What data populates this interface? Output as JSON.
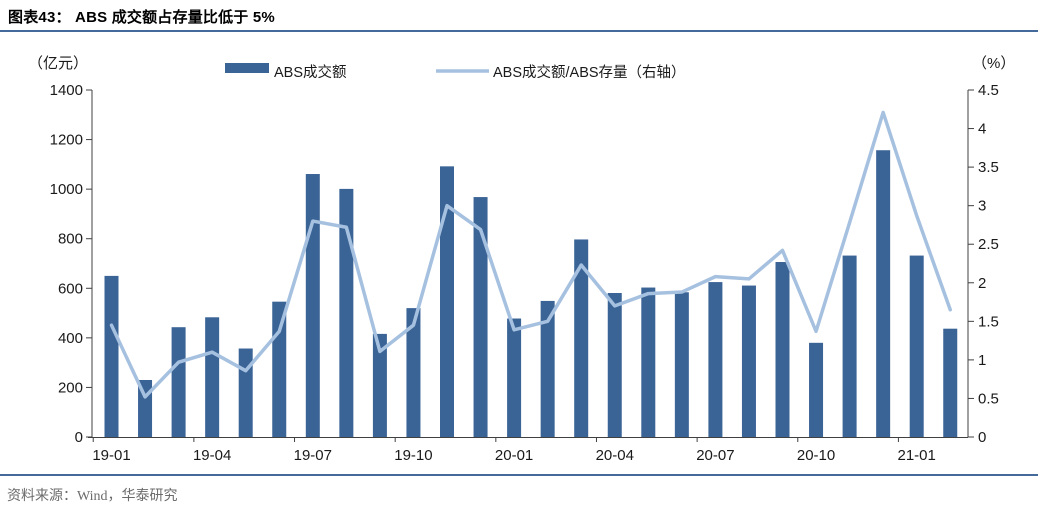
{
  "header": {
    "title": "图表43： ABS 成交额占存量比低于 5%"
  },
  "footer": {
    "source": "资料来源：Wind，华泰研究"
  },
  "colors": {
    "bar": "#3A6396",
    "line": "#A6C1E0",
    "rule": "#44699B",
    "axis": "#404040"
  },
  "chart_data": {
    "type": "combo",
    "title": "图表43： ABS 成交额占存量比低于 5%",
    "categories": [
      "19-01",
      "19-02",
      "19-03",
      "19-04",
      "19-05",
      "19-06",
      "19-07",
      "19-08",
      "19-09",
      "19-10",
      "19-11",
      "19-12",
      "20-01",
      "20-02",
      "20-03",
      "20-04",
      "20-05",
      "20-06",
      "20-07",
      "20-08",
      "20-09",
      "20-10",
      "20-11",
      "20-12",
      "21-01",
      "21-02"
    ],
    "series": [
      {
        "name": "ABS成交额",
        "type": "bar",
        "axis": "left",
        "color": "#3A6396",
        "values": [
          650,
          230,
          443,
          483,
          357,
          546,
          1061,
          1001,
          416,
          520,
          1092,
          968,
          478,
          549,
          797,
          581,
          603,
          584,
          625,
          611,
          706,
          380,
          732,
          1157,
          732,
          437
        ]
      },
      {
        "name": "ABS成交额/ABS存量（右轴）",
        "type": "line",
        "axis": "right",
        "color": "#A6C1E0",
        "values": [
          1.45,
          0.52,
          0.97,
          1.1,
          0.86,
          1.37,
          2.8,
          2.72,
          1.11,
          1.45,
          3.0,
          2.69,
          1.39,
          1.5,
          2.23,
          1.7,
          1.86,
          1.88,
          2.08,
          2.05,
          2.42,
          1.37,
          2.78,
          4.21,
          2.87,
          1.65
        ]
      }
    ],
    "left_axis": {
      "label": "（亿元）",
      "min": 0,
      "max": 1400,
      "step": 200
    },
    "right_axis": {
      "label": "（%）",
      "min": 0,
      "max": 4.5,
      "step": 0.5
    },
    "x_tick_labels": [
      "19-01",
      "19-04",
      "19-07",
      "19-10",
      "20-01",
      "20-04",
      "20-07",
      "20-10",
      "21-01"
    ],
    "grid": false,
    "legend_position": "top"
  }
}
